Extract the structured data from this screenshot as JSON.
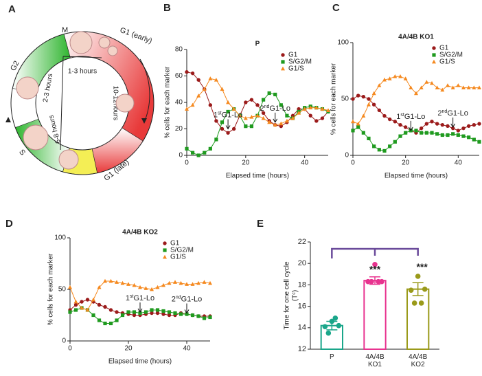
{
  "diagram": {
    "label": "A",
    "phases": [
      "M",
      "G1 (early)",
      "G1 (late)",
      "S",
      "G2"
    ],
    "durations": [
      "1-3 hours",
      "10-12hours",
      "6-8 hours",
      "2-3 hours"
    ]
  },
  "chart_data": [
    {
      "type": "line",
      "panel": "B",
      "title": "P",
      "xlabel": "Elapsed time (hours)",
      "ylabel": "% cells for each marker",
      "x": [
        0,
        2,
        4,
        6,
        8,
        10,
        12,
        14,
        16,
        18,
        20,
        22,
        24,
        26,
        28,
        30,
        32,
        34,
        36,
        38,
        40,
        42,
        44,
        46,
        48
      ],
      "xlim": [
        0,
        48
      ],
      "xticks": [
        0,
        20,
        40
      ],
      "ylim": [
        0,
        80
      ],
      "yticks": [
        0,
        20,
        40,
        60,
        80
      ],
      "legend": "upper right",
      "series": [
        {
          "name": "G1",
          "color": "#9b1b1b",
          "marker": "circle",
          "values": [
            63,
            62,
            57,
            50,
            38,
            26,
            20,
            17,
            20,
            30,
            40,
            42,
            38,
            32,
            26,
            23,
            22,
            25,
            30,
            35,
            35,
            30,
            26,
            28,
            33
          ]
        },
        {
          "name": "S/G2/M",
          "color": "#1f9a1f",
          "marker": "square",
          "values": [
            5,
            2,
            0,
            2,
            5,
            12,
            25,
            33,
            35,
            30,
            22,
            22,
            30,
            42,
            47,
            46,
            38,
            30,
            28,
            33,
            36,
            37,
            36,
            35,
            33
          ]
        },
        {
          "name": "G1/S",
          "color": "#f5891f",
          "marker": "triangle",
          "values": [
            35,
            38,
            45,
            50,
            58,
            57,
            50,
            40,
            35,
            30,
            28,
            29,
            30,
            28,
            25,
            23,
            24,
            26,
            28,
            32,
            35,
            36,
            36,
            35,
            34
          ]
        }
      ],
      "annotations": [
        {
          "ordinal": "1",
          "suffix": "st",
          "label": "G1-Lo",
          "x": 14,
          "y": 20
        },
        {
          "ordinal": "2",
          "suffix": "nd",
          "label": "G1-Lo",
          "x": 30,
          "y": 25
        }
      ]
    },
    {
      "type": "line",
      "panel": "C",
      "title": "4A/4B KO1",
      "xlabel": "Elapsed time (hours)",
      "ylabel": "% cells for each marker",
      "x": [
        0,
        2,
        4,
        6,
        8,
        10,
        12,
        14,
        16,
        18,
        20,
        22,
        24,
        26,
        28,
        30,
        32,
        34,
        36,
        38,
        40,
        42,
        44,
        46,
        48
      ],
      "xlim": [
        0,
        48
      ],
      "xticks": [
        0,
        20,
        40
      ],
      "ylim": [
        0,
        100
      ],
      "yticks": [
        0,
        50,
        100
      ],
      "legend": "upper right",
      "series": [
        {
          "name": "G1",
          "color": "#9b1b1b",
          "marker": "circle",
          "values": [
            50,
            53,
            52,
            50,
            45,
            40,
            35,
            32,
            30,
            27,
            25,
            22,
            20,
            24,
            28,
            30,
            28,
            27,
            26,
            24,
            22,
            24,
            26,
            27,
            28
          ]
        },
        {
          "name": "S/G2/M",
          "color": "#1f9a1f",
          "marker": "square",
          "values": [
            22,
            25,
            20,
            15,
            8,
            5,
            4,
            8,
            12,
            17,
            20,
            22,
            22,
            20,
            20,
            20,
            19,
            18,
            18,
            19,
            18,
            17,
            16,
            14,
            12
          ]
        },
        {
          "name": "G1/S",
          "color": "#f5891f",
          "marker": "triangle",
          "values": [
            30,
            28,
            35,
            45,
            55,
            62,
            67,
            68,
            70,
            70,
            68,
            60,
            55,
            60,
            65,
            64,
            60,
            58,
            62,
            60,
            62,
            60,
            60,
            60,
            60
          ]
        }
      ],
      "annotations": [
        {
          "ordinal": "1",
          "suffix": "st",
          "label": "G1-Lo",
          "x": 22,
          "y": 22
        },
        {
          "ordinal": "2",
          "suffix": "nd",
          "label": "G1-Lo",
          "x": 38,
          "y": 25
        }
      ]
    },
    {
      "type": "line",
      "panel": "D",
      "title": "4A/4B KO2",
      "xlabel": "Elapsed time (hours)",
      "ylabel": "% cells for each marker",
      "x": [
        0,
        2,
        4,
        6,
        8,
        10,
        12,
        14,
        16,
        18,
        20,
        22,
        24,
        26,
        28,
        30,
        32,
        34,
        36,
        38,
        40,
        42,
        44,
        46,
        48
      ],
      "xlim": [
        0,
        48
      ],
      "xticks": [
        0,
        20,
        40
      ],
      "ylim": [
        0,
        100
      ],
      "yticks": [
        0,
        50,
        100
      ],
      "legend": "upper right",
      "series": [
        {
          "name": "G1",
          "color": "#9b1b1b",
          "marker": "circle",
          "values": [
            30,
            35,
            38,
            40,
            38,
            35,
            33,
            30,
            28,
            27,
            26,
            25,
            25,
            26,
            27,
            27,
            26,
            25,
            25,
            27,
            26,
            25,
            24,
            24,
            24
          ]
        },
        {
          "name": "S/G2/M",
          "color": "#1f9a1f",
          "marker": "square",
          "values": [
            28,
            30,
            32,
            30,
            25,
            20,
            17,
            17,
            20,
            25,
            28,
            28,
            27,
            28,
            30,
            30,
            29,
            28,
            27,
            26,
            26,
            25,
            24,
            22,
            23
          ]
        },
        {
          "name": "G1/S",
          "color": "#f5891f",
          "marker": "triangle",
          "values": [
            52,
            38,
            32,
            30,
            40,
            52,
            58,
            58,
            57,
            56,
            55,
            54,
            52,
            51,
            50,
            52,
            54,
            56,
            57,
            56,
            55,
            55,
            56,
            57,
            56
          ]
        }
      ],
      "annotations": [
        {
          "ordinal": "1",
          "suffix": "st",
          "label": "G1-Lo",
          "x": 24,
          "y": 28
        },
        {
          "ordinal": "2",
          "suffix": "nd",
          "label": "G1-Lo",
          "x": 40,
          "y": 27
        }
      ]
    },
    {
      "type": "dotbar",
      "panel": "E",
      "ylabel": "Time for one cell cycle",
      "ylabel_unit": "(Tᶜ)",
      "categories": [
        "P",
        "4A/4B KO1",
        "4A/4B KO2"
      ],
      "colors": [
        "#1aa68a",
        "#e8338f",
        "#9a9a1a"
      ],
      "values": [
        14.2,
        18.4,
        17.6
      ],
      "errors": [
        0.4,
        0.35,
        0.6
      ],
      "points": [
        [
          14.6,
          14.1,
          14.2,
          13.5,
          14.9
        ],
        [
          19.9,
          18.3,
          18.3,
          18.3,
          18.3
        ],
        [
          18.8,
          17.5,
          17.6,
          16.3,
          16.3
        ]
      ],
      "significance": [
        "***",
        "***"
      ],
      "bracket_color": "#6a4a9a",
      "ylim": [
        12,
        22
      ],
      "yticks": [
        12,
        14,
        16,
        18,
        20,
        22
      ]
    }
  ]
}
